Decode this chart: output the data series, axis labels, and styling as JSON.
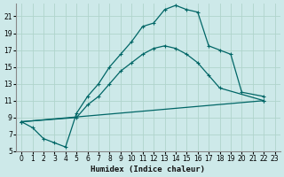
{
  "xlabel": "Humidex (Indice chaleur)",
  "bg_color": "#cde9e9",
  "grid_color": "#b0d4cc",
  "line_color": "#006666",
  "xlim": [
    -0.5,
    23.5
  ],
  "ylim": [
    5,
    22.5
  ],
  "yticks": [
    5,
    7,
    9,
    11,
    13,
    15,
    17,
    19,
    21
  ],
  "xticks": [
    0,
    1,
    2,
    3,
    4,
    5,
    6,
    7,
    8,
    9,
    10,
    11,
    12,
    13,
    14,
    15,
    16,
    17,
    18,
    19,
    20,
    21,
    22,
    23
  ],
  "line1_x": [
    0,
    1,
    2,
    3,
    4,
    5,
    6,
    7,
    8,
    9,
    10,
    11,
    12,
    13,
    14,
    15,
    16,
    17,
    18,
    19,
    20,
    22
  ],
  "line1_y": [
    8.5,
    7.8,
    6.5,
    6.0,
    5.5,
    9.5,
    11.5,
    13.0,
    15.0,
    16.5,
    18.0,
    19.8,
    20.2,
    21.8,
    22.3,
    21.8,
    21.5,
    17.5,
    17.0,
    16.5,
    12.0,
    11.5
  ],
  "line2_x": [
    0,
    5,
    6,
    7,
    8,
    9,
    10,
    11,
    12,
    13,
    14,
    15,
    16,
    17,
    18,
    22
  ],
  "line2_y": [
    8.5,
    9.0,
    10.5,
    11.5,
    13.0,
    14.5,
    15.5,
    16.5,
    17.2,
    17.5,
    17.2,
    16.5,
    15.5,
    14.0,
    12.5,
    11.0
  ],
  "line3_x": [
    0,
    22
  ],
  "line3_y": [
    8.5,
    11.0
  ]
}
